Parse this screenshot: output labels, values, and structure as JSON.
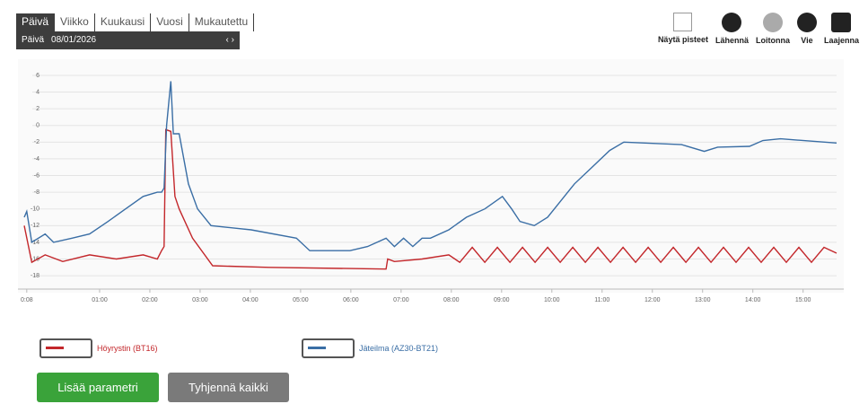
{
  "toolbar_left": {
    "tabs": [
      "Päivä",
      "Viikko",
      "Kuukausi",
      "Vuosi",
      "Mukautettu"
    ],
    "date_label": "Päivä",
    "date": "08/01/2026"
  },
  "toolbar_right": {
    "items": [
      "Näytä pisteet",
      "Lähennä",
      "Loitonna",
      "Vie",
      "Laajenna"
    ]
  },
  "chart_data": {
    "type": "line",
    "xlim": [
      -30,
      940
    ],
    "ylim": [
      -19.6,
      7.5
    ],
    "xticks": [
      {
        "value": -27,
        "label": "0:08"
      },
      {
        "value": 60,
        "label": "01:00"
      },
      {
        "value": 120,
        "label": "02:00"
      },
      {
        "value": 180,
        "label": "03:00"
      },
      {
        "value": 240,
        "label": "04:00"
      },
      {
        "value": 300,
        "label": "05:00"
      },
      {
        "value": 360,
        "label": "06:00"
      },
      {
        "value": 420,
        "label": "07:00"
      },
      {
        "value": 480,
        "label": "08:00"
      },
      {
        "value": 540,
        "label": "09:00"
      },
      {
        "value": 600,
        "label": "10:00"
      },
      {
        "value": 660,
        "label": "11:00"
      },
      {
        "value": 720,
        "label": "12:00"
      },
      {
        "value": 780,
        "label": "13:00"
      },
      {
        "value": 840,
        "label": "14:00"
      },
      {
        "value": 900,
        "label": "15:00"
      }
    ],
    "yticks": [
      6,
      4,
      2,
      0,
      -2,
      -4,
      -6,
      -8,
      -10,
      -12,
      -14,
      -16,
      -18
    ],
    "grid": true,
    "series": [
      {
        "name": "Höyrystin (BT16)",
        "color": "#c3272b",
        "x": [
          -30,
          -21,
          -5,
          16,
          48,
          80,
          112,
          129,
          134,
          137,
          139,
          145,
          150,
          155,
          171,
          195,
          262,
          402,
          404,
          412,
          445,
          477,
          490,
          505,
          520,
          535,
          550,
          565,
          580,
          595,
          610,
          625,
          640,
          655,
          670,
          685,
          700,
          715,
          730,
          745,
          760,
          775,
          790,
          805,
          820,
          835,
          850,
          865,
          880,
          895,
          910,
          925,
          940
        ],
        "values": [
          -12,
          -16.4,
          -15.5,
          -16.3,
          -15.5,
          -16,
          -15.5,
          -16,
          -15,
          -14.5,
          -0.5,
          -0.7,
          -8.5,
          -10,
          -13.5,
          -16.8,
          -17,
          -17.2,
          -16,
          -16.3,
          -16,
          -15.5,
          -16.4,
          -14.6,
          -16.4,
          -14.6,
          -16.4,
          -14.6,
          -16.4,
          -14.6,
          -16.4,
          -14.6,
          -16.4,
          -14.6,
          -16.4,
          -14.6,
          -16.4,
          -14.6,
          -16.4,
          -14.6,
          -16.4,
          -14.6,
          -16.4,
          -14.6,
          -16.4,
          -14.6,
          -16.4,
          -14.6,
          -16.4,
          -14.6,
          -16.4,
          -14.6,
          -15.3
        ]
      },
      {
        "name": "Jäteilma (AZ30-BT21)",
        "color": "#3a6ea5",
        "x": [
          -30,
          -27,
          -21,
          -5,
          5,
          27,
          48,
          70,
          91,
          112,
          129,
          134,
          137,
          140,
          145,
          148,
          155,
          166,
          177,
          193,
          241,
          295,
          311,
          359,
          380,
          402,
          412,
          423,
          434,
          445,
          455,
          477,
          498,
          520,
          541,
          552,
          562,
          579,
          595,
          611,
          627,
          648,
          669,
          686,
          755,
          782,
          798,
          836,
          852,
          873,
          940
        ],
        "values": [
          -11,
          -10.3,
          -14,
          -13,
          -14,
          -13.5,
          -13,
          -11.5,
          -10,
          -8.5,
          -8,
          -8,
          -7.5,
          0,
          5.3,
          -1,
          -1,
          -7,
          -10,
          -12,
          -12.5,
          -13.5,
          -15,
          -15,
          -14.5,
          -13.5,
          -14.5,
          -13.5,
          -14.5,
          -13.5,
          -13.5,
          -12.5,
          -11,
          -10,
          -8.5,
          -10,
          -11.5,
          -12,
          -11,
          -9,
          -7,
          -5,
          -3,
          -2,
          -2.3,
          -3.1,
          -2.6,
          -2.5,
          -1.8,
          -1.6,
          -2.1
        ]
      }
    ]
  },
  "buttons": [
    "Lisää parametri",
    "Tyhjennä kaikki"
  ]
}
